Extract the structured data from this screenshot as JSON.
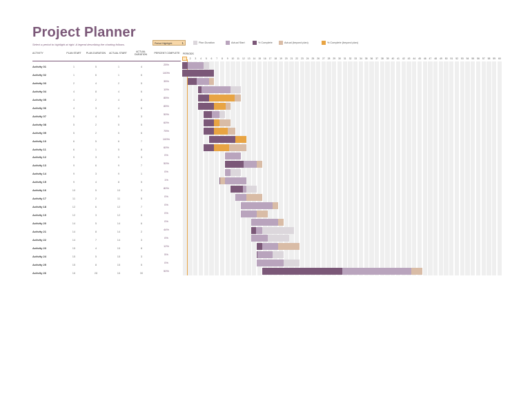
{
  "title": "Project Planner",
  "subtitle": "Select a period to highlight at right.  A legend describing the charting follows.",
  "period_highlight": {
    "label": "Period Highlight:",
    "value": "1"
  },
  "legend": [
    {
      "label": "Plan Duration",
      "color": "#dcd7dc"
    },
    {
      "label": "Actual Start",
      "color": "#b9a4bd"
    },
    {
      "label": "% Complete",
      "color": "#7b5878"
    },
    {
      "label": "Actual (beyond plan)",
      "color": "#d9bca6"
    },
    {
      "label": "% Complete (beyond plan)",
      "color": "#e8a443"
    }
  ],
  "headers": {
    "activity": "ACTIVITY",
    "plan_start": "PLAN START",
    "plan_duration": "PLAN DURATION",
    "actual_start": "ACTUAL START",
    "actual_duration": "ACTUAL DURATION",
    "percent_complete": "PERCENT COMPLETE",
    "periods": "PERIODS"
  },
  "colors": {
    "plan": "#dcd7dc",
    "actual": "#b9a4bd",
    "complete": "#7b5878",
    "beyond": "#d9bca6",
    "complete_beyond": "#e8a443"
  },
  "period_count": 60,
  "activities": [
    {
      "name": "Activity 01",
      "plan_start": 1,
      "plan_duration": 5,
      "actual_start": 1,
      "actual_duration": 4,
      "percent": "25%"
    },
    {
      "name": "Activity 02",
      "plan_start": 1,
      "plan_duration": 6,
      "actual_start": 1,
      "actual_duration": 6,
      "percent": "100%"
    },
    {
      "name": "Activity 03",
      "plan_start": 2,
      "plan_duration": 4,
      "actual_start": 2,
      "actual_duration": 5,
      "percent": "35%"
    },
    {
      "name": "Activity 04",
      "plan_start": 4,
      "plan_duration": 8,
      "actual_start": 4,
      "actual_duration": 6,
      "percent": "10%"
    },
    {
      "name": "Activity 05",
      "plan_start": 4,
      "plan_duration": 2,
      "actual_start": 4,
      "actual_duration": 8,
      "percent": "85%"
    },
    {
      "name": "Activity 06",
      "plan_start": 4,
      "plan_duration": 3,
      "actual_start": 4,
      "actual_duration": 6,
      "percent": "85%"
    },
    {
      "name": "Activity 07",
      "plan_start": 5,
      "plan_duration": 4,
      "actual_start": 5,
      "actual_duration": 3,
      "percent": "50%"
    },
    {
      "name": "Activity 08",
      "plan_start": 5,
      "plan_duration": 2,
      "actual_start": 5,
      "actual_duration": 5,
      "percent": "60%"
    },
    {
      "name": "Activity 09",
      "plan_start": 5,
      "plan_duration": 2,
      "actual_start": 5,
      "actual_duration": 6,
      "percent": "75%"
    },
    {
      "name": "Activity 10",
      "plan_start": 6,
      "plan_duration": 5,
      "actual_start": 6,
      "actual_duration": 7,
      "percent": "100%"
    },
    {
      "name": "Activity 11",
      "plan_start": 6,
      "plan_duration": 1,
      "actual_start": 5,
      "actual_duration": 8,
      "percent": "60%"
    },
    {
      "name": "Activity 12",
      "plan_start": 9,
      "plan_duration": 3,
      "actual_start": 9,
      "actual_duration": 3,
      "percent": "0%"
    },
    {
      "name": "Activity 13",
      "plan_start": 9,
      "plan_duration": 6,
      "actual_start": 9,
      "actual_duration": 7,
      "percent": "50%"
    },
    {
      "name": "Activity 14",
      "plan_start": 9,
      "plan_duration": 3,
      "actual_start": 9,
      "actual_duration": 1,
      "percent": "0%"
    },
    {
      "name": "Activity 15",
      "plan_start": 9,
      "plan_duration": 4,
      "actual_start": 8,
      "actual_duration": 5,
      "percent": "1%"
    },
    {
      "name": "Activity 16",
      "plan_start": 10,
      "plan_duration": 5,
      "actual_start": 10,
      "actual_duration": 3,
      "percent": "80%"
    },
    {
      "name": "Activity 17",
      "plan_start": 11,
      "plan_duration": 2,
      "actual_start": 11,
      "actual_duration": 5,
      "percent": "0%"
    },
    {
      "name": "Activity 18",
      "plan_start": 12,
      "plan_duration": 6,
      "actual_start": 12,
      "actual_duration": 7,
      "percent": "0%"
    },
    {
      "name": "Activity 19",
      "plan_start": 12,
      "plan_duration": 3,
      "actual_start": 12,
      "actual_duration": 5,
      "percent": "0%"
    },
    {
      "name": "Activity 20",
      "plan_start": 14,
      "plan_duration": 5,
      "actual_start": 14,
      "actual_duration": 6,
      "percent": "0%"
    },
    {
      "name": "Activity 21",
      "plan_start": 14,
      "plan_duration": 8,
      "actual_start": 14,
      "actual_duration": 2,
      "percent": "44%"
    },
    {
      "name": "Activity 22",
      "plan_start": 14,
      "plan_duration": 7,
      "actual_start": 14,
      "actual_duration": 3,
      "percent": "0%"
    },
    {
      "name": "Activity 23",
      "plan_start": 15,
      "plan_duration": 4,
      "actual_start": 15,
      "actual_duration": 8,
      "percent": "12%"
    },
    {
      "name": "Activity 24",
      "plan_start": 15,
      "plan_duration": 5,
      "actual_start": 15,
      "actual_duration": 3,
      "percent": "5%"
    },
    {
      "name": "Activity 25",
      "plan_start": 15,
      "plan_duration": 8,
      "actual_start": 15,
      "actual_duration": 5,
      "percent": "0%"
    },
    {
      "name": "Activity 26",
      "plan_start": 16,
      "plan_duration": 28,
      "actual_start": 16,
      "actual_duration": 30,
      "percent": "50%"
    }
  ]
}
